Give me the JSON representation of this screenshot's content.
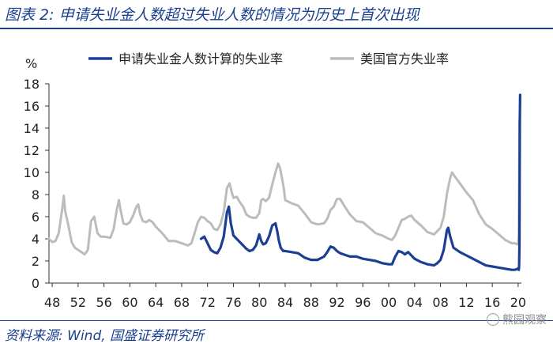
{
  "header": {
    "title": "图表 2:  申请失业金人数超过失业人数的情况为历史上首次出现"
  },
  "footer": {
    "source": "资料来源:  Wind,  国盛证券研究所",
    "watermark": "熊园观察"
  },
  "chart_data": {
    "type": "line",
    "ylabel": "%",
    "ylim": [
      0,
      18
    ],
    "xlim": [
      1947.5,
      2020.5
    ],
    "y_ticks": [
      0,
      2,
      4,
      6,
      8,
      10,
      12,
      14,
      16,
      18
    ],
    "x_tick_labels": [
      "48",
      "52",
      "56",
      "60",
      "64",
      "68",
      "72",
      "76",
      "80",
      "84",
      "88",
      "92",
      "96",
      "00",
      "04",
      "08",
      "12",
      "16",
      "20"
    ],
    "x_tick_years": [
      1948,
      1952,
      1956,
      1960,
      1964,
      1968,
      1972,
      1976,
      1980,
      1984,
      1988,
      1992,
      1996,
      2000,
      2004,
      2008,
      2012,
      2016,
      2020
    ],
    "grid": false,
    "legend_position": "top",
    "series": [
      {
        "name": "申请失业金人数计算的失业率",
        "color": "#1c3f94",
        "x": [
          1971.0,
          1971.5,
          1972.0,
          1972.5,
          1973.0,
          1973.5,
          1974.0,
          1974.5,
          1975.0,
          1975.3,
          1975.6,
          1976.0,
          1976.5,
          1977.0,
          1977.5,
          1978.0,
          1978.5,
          1979.0,
          1979.5,
          1980.0,
          1980.3,
          1980.6,
          1981.0,
          1981.5,
          1982.0,
          1982.5,
          1982.8,
          1983.0,
          1983.3,
          1983.7,
          1984.0,
          1985.0,
          1986.0,
          1987.0,
          1988.0,
          1989.0,
          1990.0,
          1990.5,
          1991.0,
          1991.5,
          1992.0,
          1992.5,
          1993.0,
          1994.0,
          1995.0,
          1996.0,
          1997.0,
          1998.0,
          1999.0,
          2000.0,
          2000.5,
          2001.0,
          2001.5,
          2002.0,
          2002.5,
          2003.0,
          2003.5,
          2004.0,
          2005.0,
          2006.0,
          2007.0,
          2007.5,
          2008.0,
          2008.5,
          2009.0,
          2009.2,
          2009.5,
          2010.0,
          2011.0,
          2012.0,
          2013.0,
          2014.0,
          2015.0,
          2016.0,
          2017.0,
          2018.0,
          2019.0,
          2019.5,
          2019.9,
          2020.0,
          2020.1,
          2020.15,
          2020.2,
          2020.25,
          2020.3
        ],
        "values": [
          4.0,
          4.2,
          3.6,
          3.0,
          2.8,
          2.7,
          3.2,
          4.2,
          6.4,
          6.9,
          5.4,
          4.3,
          4.0,
          3.7,
          3.4,
          3.1,
          2.9,
          3.0,
          3.4,
          4.4,
          3.8,
          3.5,
          3.6,
          4.2,
          5.2,
          5.4,
          4.6,
          3.9,
          3.2,
          2.9,
          2.9,
          2.8,
          2.7,
          2.3,
          2.1,
          2.1,
          2.4,
          2.8,
          3.3,
          3.2,
          2.9,
          2.7,
          2.6,
          2.4,
          2.4,
          2.2,
          2.1,
          2.0,
          1.8,
          1.7,
          1.7,
          2.4,
          2.9,
          2.8,
          2.6,
          2.8,
          2.5,
          2.2,
          1.9,
          1.7,
          1.6,
          1.8,
          2.1,
          3.0,
          4.8,
          5.0,
          4.2,
          3.2,
          2.8,
          2.5,
          2.2,
          1.9,
          1.6,
          1.5,
          1.4,
          1.3,
          1.2,
          1.2,
          1.3,
          1.3,
          1.2,
          1.6,
          3.4,
          14.8,
          17.0
        ]
      },
      {
        "name": "美国官方失业率",
        "color": "#bcbcbc",
        "x": [
          1947.5,
          1948.0,
          1948.5,
          1949.0,
          1949.5,
          1949.8,
          1950.0,
          1950.5,
          1951.0,
          1951.5,
          1952.0,
          1952.5,
          1953.0,
          1953.5,
          1954.0,
          1954.5,
          1955.0,
          1955.5,
          1956.0,
          1957.0,
          1957.5,
          1958.0,
          1958.3,
          1958.6,
          1959.0,
          1959.5,
          1960.0,
          1960.5,
          1961.0,
          1961.3,
          1961.6,
          1962.0,
          1962.5,
          1963.0,
          1963.5,
          1964.0,
          1965.0,
          1966.0,
          1967.0,
          1968.0,
          1969.0,
          1969.5,
          1970.0,
          1970.5,
          1971.0,
          1971.5,
          1972.0,
          1972.5,
          1973.0,
          1973.5,
          1974.0,
          1974.5,
          1975.0,
          1975.4,
          1975.8,
          1976.0,
          1976.5,
          1977.0,
          1977.5,
          1978.0,
          1978.5,
          1979.0,
          1979.5,
          1980.0,
          1980.3,
          1980.6,
          1981.0,
          1981.5,
          1982.0,
          1982.5,
          1982.9,
          1983.2,
          1983.5,
          1983.8,
          1984.0,
          1985.0,
          1986.0,
          1987.0,
          1988.0,
          1989.0,
          1990.0,
          1990.5,
          1991.0,
          1991.5,
          1992.0,
          1992.5,
          1993.0,
          1994.0,
          1995.0,
          1996.0,
          1997.0,
          1998.0,
          1999.0,
          2000.0,
          2000.5,
          2001.0,
          2001.5,
          2002.0,
          2002.5,
          2003.0,
          2003.5,
          2004.0,
          2005.0,
          2006.0,
          2007.0,
          2007.5,
          2008.0,
          2008.5,
          2009.0,
          2009.5,
          2009.8,
          2010.0,
          2010.5,
          2011.0,
          2012.0,
          2013.0,
          2014.0,
          2015.0,
          2016.0,
          2017.0,
          2018.0,
          2019.0,
          2019.5,
          2019.9,
          2020.0,
          2020.1,
          2020.2,
          2020.3
        ],
        "values": [
          4.0,
          3.7,
          3.8,
          4.5,
          6.5,
          7.9,
          6.5,
          5.2,
          3.7,
          3.2,
          3.0,
          2.8,
          2.6,
          3.0,
          5.6,
          6.0,
          4.5,
          4.2,
          4.2,
          4.1,
          4.9,
          6.7,
          7.5,
          6.5,
          5.4,
          5.3,
          5.5,
          6.1,
          6.9,
          7.1,
          6.2,
          5.6,
          5.5,
          5.7,
          5.5,
          5.1,
          4.5,
          3.8,
          3.8,
          3.6,
          3.4,
          3.6,
          4.5,
          5.5,
          6.0,
          5.9,
          5.6,
          5.4,
          4.9,
          4.8,
          5.3,
          6.4,
          8.6,
          9.0,
          8.1,
          7.7,
          7.8,
          7.3,
          6.9,
          6.2,
          6.0,
          5.9,
          5.9,
          6.3,
          7.5,
          7.6,
          7.4,
          7.7,
          8.9,
          10.0,
          10.8,
          10.4,
          9.5,
          8.5,
          7.5,
          7.2,
          7.0,
          6.3,
          5.5,
          5.3,
          5.4,
          5.8,
          6.6,
          6.9,
          7.6,
          7.6,
          7.1,
          6.2,
          5.6,
          5.5,
          5.0,
          4.5,
          4.3,
          4.0,
          3.9,
          4.3,
          5.0,
          5.7,
          5.8,
          6.0,
          6.1,
          5.7,
          5.2,
          4.6,
          4.4,
          4.7,
          5.0,
          6.0,
          8.1,
          9.5,
          10.0,
          9.8,
          9.4,
          9.0,
          8.2,
          7.5,
          6.2,
          5.3,
          4.9,
          4.4,
          3.9,
          3.6,
          3.6,
          3.5,
          3.6,
          4.4,
          14.7,
          14.7
        ]
      }
    ]
  }
}
